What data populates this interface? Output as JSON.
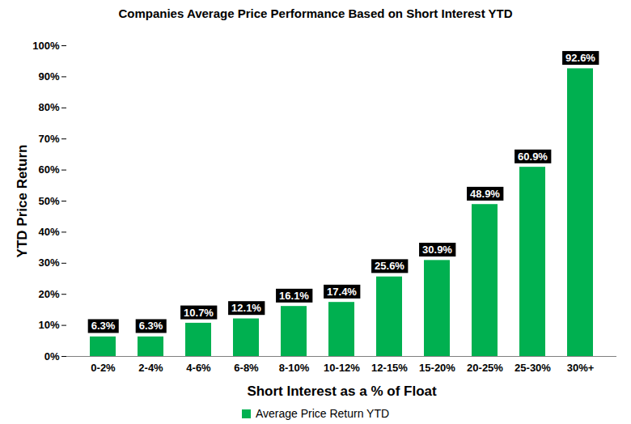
{
  "chart_data": {
    "type": "bar",
    "title": "Companies Average Price Performance Based on Short Interest YTD",
    "x_label": "Short Interest as a % of Float",
    "y_label": "YTD Price Return",
    "categories": [
      "0-2%",
      "2-4%",
      "4-6%",
      "6-8%",
      "8-10%",
      "10-12%",
      "12-15%",
      "15-20%",
      "20-25%",
      "25-30%",
      "30%+"
    ],
    "series": [
      {
        "name": "Average Price Return YTD",
        "color": "#00b050",
        "values": [
          6.3,
          6.3,
          10.7,
          12.1,
          16.1,
          17.4,
          25.6,
          30.9,
          48.9,
          60.9,
          92.6
        ],
        "value_labels": [
          "6.3%",
          "6.3%",
          "10.7%",
          "12.1%",
          "16.1%",
          "17.4%",
          "25.6%",
          "30.9%",
          "48.9%",
          "60.9%",
          "92.6%"
        ]
      }
    ],
    "ylim": [
      0,
      100
    ],
    "yticks": [
      {
        "value": 0,
        "label": "0%"
      },
      {
        "value": 10,
        "label": "10%"
      },
      {
        "value": 20,
        "label": "20%"
      },
      {
        "value": 30,
        "label": "30%"
      },
      {
        "value": 40,
        "label": "40%"
      },
      {
        "value": 50,
        "label": "50%"
      },
      {
        "value": 60,
        "label": "60%"
      },
      {
        "value": 70,
        "label": "70%"
      },
      {
        "value": 80,
        "label": "80%"
      },
      {
        "value": 90,
        "label": "90%"
      },
      {
        "value": 100,
        "label": "100%"
      }
    ],
    "grid": false,
    "data_labels": true,
    "legend": "bottom"
  }
}
